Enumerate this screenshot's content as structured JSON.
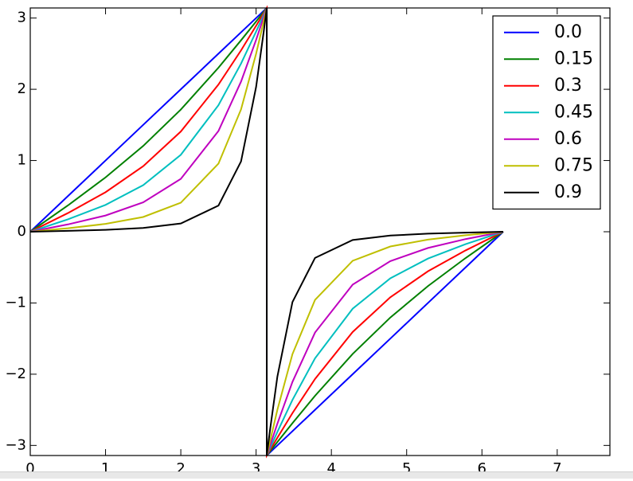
{
  "chart_data": {
    "type": "line",
    "x": [
      0,
      0.5,
      1,
      1.5,
      2,
      2.5,
      2.8,
      3.0,
      3.1,
      3.1416,
      3.1416,
      3.183,
      3.283,
      3.483,
      3.783,
      4.283,
      4.783,
      5.283,
      5.783,
      6.283
    ],
    "series": [
      {
        "name": "0.0",
        "color": "#0000ff",
        "values": [
          0,
          0.5,
          1,
          1.5,
          2,
          2.5,
          2.8,
          3.0,
          3.1,
          3.1416,
          -3.1416,
          -3.1,
          -3.0,
          -2.8,
          -2.5,
          -2,
          -1.5,
          -1,
          -0.5,
          0
        ]
      },
      {
        "name": "0.15",
        "color": "#008000",
        "values": [
          0,
          0.369,
          0.763,
          1.204,
          1.715,
          2.303,
          2.688,
          2.952,
          3.086,
          3.1416,
          -3.1416,
          -3.086,
          -2.952,
          -2.688,
          -2.303,
          -1.715,
          -1.204,
          -0.763,
          -0.369,
          0
        ]
      },
      {
        "name": "0.3",
        "color": "#ff0000",
        "values": [
          0,
          0.262,
          0.555,
          0.92,
          1.407,
          2.067,
          2.546,
          2.891,
          3.068,
          3.1416,
          -3.1416,
          -3.068,
          -2.891,
          -2.546,
          -2.067,
          -1.407,
          -0.92,
          -0.555,
          -0.262,
          0
        ]
      },
      {
        "name": "0.45",
        "color": "#00bfbf",
        "values": [
          0,
          0.174,
          0.377,
          0.654,
          1.08,
          1.777,
          2.361,
          2.81,
          3.044,
          3.1416,
          -3.1416,
          -3.044,
          -2.81,
          -2.361,
          -1.777,
          -1.08,
          -0.654,
          -0.377,
          -0.174,
          0
        ]
      },
      {
        "name": "0.6",
        "color": "#bf00bf",
        "values": [
          0,
          0.103,
          0.228,
          0.413,
          0.742,
          1.415,
          2.108,
          2.694,
          3.009,
          3.1416,
          -3.1416,
          -3.009,
          -2.694,
          -2.108,
          -1.415,
          -0.742,
          -0.413,
          -0.228,
          -0.103,
          0
        ]
      },
      {
        "name": "0.75",
        "color": "#bfbf00",
        "values": [
          0,
          0.049,
          0.11,
          0.207,
          0.408,
          0.956,
          1.718,
          2.499,
          2.949,
          3.1416,
          -3.1416,
          -2.949,
          -2.499,
          -1.718,
          -0.956,
          -0.408,
          -0.207,
          -0.11,
          -0.049,
          0
        ]
      },
      {
        "name": "0.9",
        "color": "#000000",
        "values": [
          0,
          0.012,
          0.027,
          0.053,
          0.116,
          0.367,
          0.987,
          2.032,
          2.799,
          3.1416,
          -3.1416,
          -2.799,
          -2.032,
          -0.987,
          -0.367,
          -0.116,
          -0.053,
          -0.027,
          -0.012,
          0
        ]
      }
    ],
    "xlim": [
      0,
      7.7
    ],
    "xticks": [
      0,
      1,
      2,
      3,
      4,
      5,
      6,
      7
    ],
    "ylim": [
      -3.1416,
      3.1416
    ],
    "yticks": [
      {
        "value": -3,
        "label": "−3"
      },
      {
        "value": -2,
        "label": "−2"
      },
      {
        "value": -1,
        "label": "−1"
      },
      0,
      1,
      2,
      3
    ],
    "grid": false,
    "legend": "upper right"
  }
}
